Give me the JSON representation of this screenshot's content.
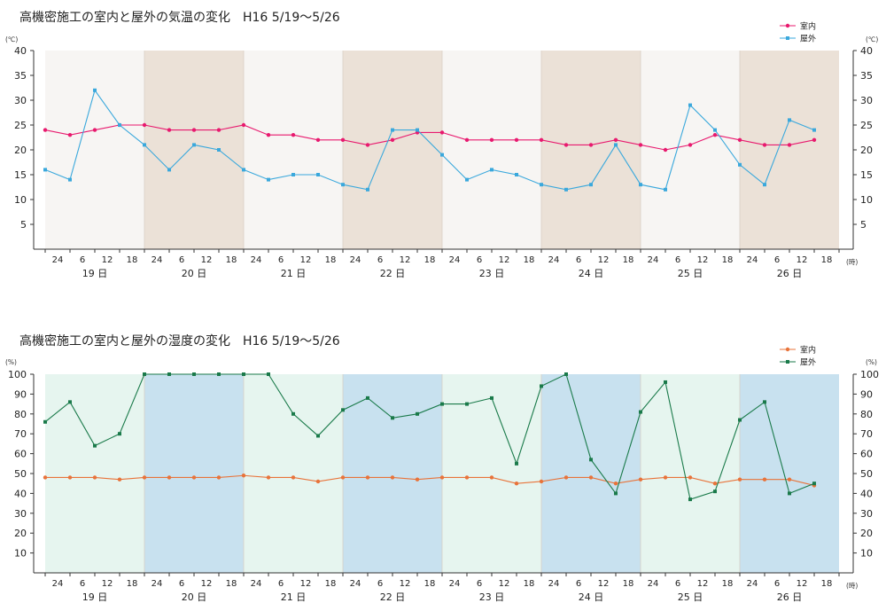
{
  "chart_data": [
    {
      "type": "line",
      "title": "高機密施工の室内と屋外の気温の変化　H16  5/19〜5/26",
      "unit_left": "(℃)",
      "unit_right": "(℃)",
      "hour_unit": "(時)",
      "ylim": [
        0,
        40
      ],
      "yticks": [
        5,
        10,
        15,
        20,
        25,
        30,
        35,
        40
      ],
      "days": [
        "19 日",
        "20 日",
        "21 日",
        "22 日",
        "23 日",
        "24 日",
        "25 日",
        "26 日"
      ],
      "hour_labels": [
        "24",
        "6",
        "12",
        "18"
      ],
      "x_hours": [
        0,
        6,
        12,
        18,
        24,
        30,
        36,
        42,
        48,
        54,
        60,
        66,
        72,
        78,
        84,
        90,
        96,
        102,
        108,
        114,
        120,
        126,
        132,
        138,
        144,
        150,
        156,
        162,
        168,
        174,
        180,
        186
      ],
      "grid": false,
      "legend_position": "top-right",
      "colors": {
        "band_light": "#f7f5f3",
        "band_dark": "#ebe1d7"
      },
      "series": [
        {
          "name": "室内",
          "color": "#e8196e",
          "marker": "circle",
          "values": [
            24,
            23,
            24,
            25,
            25,
            24,
            24,
            24,
            25,
            23,
            23,
            22,
            22,
            21,
            22,
            23.5,
            23.5,
            22,
            22,
            22,
            22,
            21,
            21,
            22,
            21,
            20,
            21,
            23,
            22,
            21,
            21,
            22
          ]
        },
        {
          "name": "屋外",
          "color": "#3aa8dc",
          "marker": "square",
          "values": [
            16,
            14,
            32,
            25,
            21,
            16,
            21,
            20,
            16,
            14,
            15,
            15,
            13,
            12,
            24,
            24,
            19,
            14,
            16,
            15,
            13,
            12,
            13,
            21,
            13,
            12,
            29,
            24,
            17,
            13,
            26,
            24
          ]
        }
      ]
    },
    {
      "type": "line",
      "title": "高機密施工の室内と屋外の湿度の変化　H16  5/19〜5/26",
      "unit_left": "(%)",
      "unit_right": "(%)",
      "hour_unit": "(時)",
      "ylim": [
        0,
        100
      ],
      "yticks": [
        10,
        20,
        30,
        40,
        50,
        60,
        70,
        80,
        90,
        100
      ],
      "days": [
        "19 日",
        "20 日",
        "21 日",
        "22 日",
        "23 日",
        "24 日",
        "25 日",
        "26 日"
      ],
      "hour_labels": [
        "24",
        "6",
        "12",
        "18"
      ],
      "x_hours": [
        0,
        6,
        12,
        18,
        24,
        30,
        36,
        42,
        48,
        54,
        60,
        66,
        72,
        78,
        84,
        90,
        96,
        102,
        108,
        114,
        120,
        126,
        132,
        138,
        144,
        150,
        156,
        162,
        168,
        174,
        180,
        186
      ],
      "grid": false,
      "legend_position": "top-right",
      "colors": {
        "band_light": "#e6f5ef",
        "band_dark": "#c8e1ef"
      },
      "series": [
        {
          "name": "室内",
          "color": "#e8733a",
          "marker": "circle",
          "values": [
            48,
            48,
            48,
            47,
            48,
            48,
            48,
            48,
            49,
            48,
            48,
            46,
            48,
            48,
            48,
            47,
            48,
            48,
            48,
            45,
            46,
            48,
            48,
            45,
            47,
            48,
            48,
            45,
            47,
            47,
            47,
            44
          ]
        },
        {
          "name": "屋外",
          "color": "#1a7a4a",
          "marker": "square",
          "values": [
            76,
            86,
            64,
            70,
            100,
            100,
            100,
            100,
            100,
            100,
            80,
            69,
            82,
            88,
            78,
            80,
            85,
            85,
            88,
            55,
            94,
            100,
            57,
            40,
            81,
            96,
            37,
            41,
            77,
            86,
            40,
            45
          ]
        }
      ]
    }
  ]
}
